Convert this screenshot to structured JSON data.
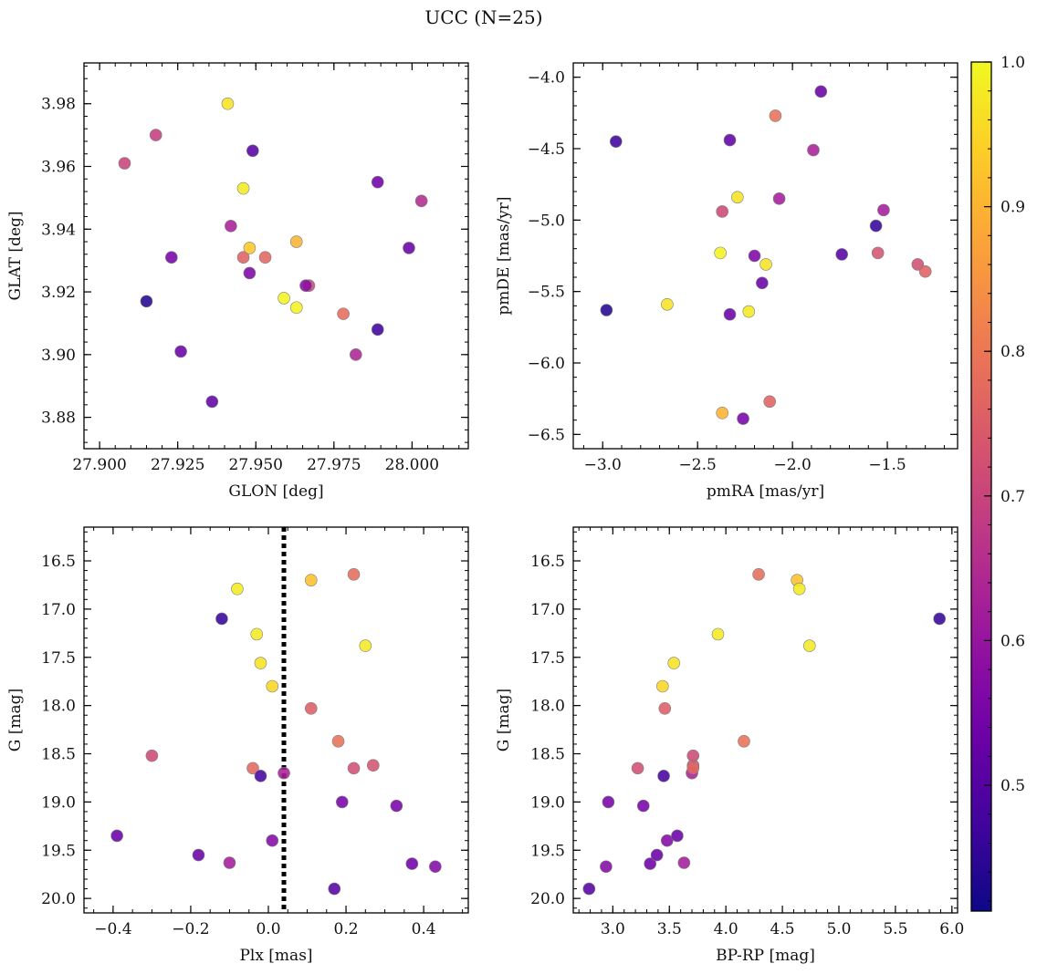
{
  "figure": {
    "title": "UCC (N=25)"
  },
  "colors": {
    "colormap": [
      "#0d0887",
      "#46039f",
      "#7201a8",
      "#9c179e",
      "#bd3786",
      "#d8576b",
      "#ed7953",
      "#fb9f3a",
      "#fdca26",
      "#f0f921"
    ],
    "axis": "#000000",
    "marker_edge": "#7f7f7f",
    "reference_line": "#000000"
  },
  "chart_data": [
    {
      "type": "scatter",
      "id": "glon_glat",
      "xlabel": "GLON [deg]",
      "ylabel": "GLAT [deg]",
      "xlim": [
        27.895,
        28.018
      ],
      "ylim": [
        3.87,
        3.993
      ],
      "xticks": [
        27.9,
        27.925,
        27.95,
        27.975,
        28.0
      ],
      "xtick_labels": [
        "27.900",
        "27.925",
        "27.950",
        "27.975",
        "28.000"
      ],
      "yticks": [
        3.88,
        3.9,
        3.92,
        3.94,
        3.96,
        3.98
      ],
      "ytick_labels": [
        "3.88",
        "3.90",
        "3.92",
        "3.94",
        "3.96",
        "3.98"
      ],
      "x_minor_step": 0.005,
      "y_minor_step": 0.004,
      "y_inverted": false,
      "points": [
        {
          "x": 27.908,
          "y": 3.961,
          "c": 0.7
        },
        {
          "x": 27.918,
          "y": 3.97,
          "c": 0.69
        },
        {
          "x": 27.915,
          "y": 3.917,
          "c": 0.44
        },
        {
          "x": 27.923,
          "y": 3.931,
          "c": 0.55
        },
        {
          "x": 27.926,
          "y": 3.901,
          "c": 0.53
        },
        {
          "x": 27.936,
          "y": 3.885,
          "c": 0.52
        },
        {
          "x": 27.941,
          "y": 3.98,
          "c": 0.97
        },
        {
          "x": 27.942,
          "y": 3.941,
          "c": 0.63
        },
        {
          "x": 27.946,
          "y": 3.953,
          "c": 0.98
        },
        {
          "x": 27.946,
          "y": 3.931,
          "c": 0.76
        },
        {
          "x": 27.948,
          "y": 3.934,
          "c": 0.93
        },
        {
          "x": 27.948,
          "y": 3.926,
          "c": 0.56
        },
        {
          "x": 27.949,
          "y": 3.965,
          "c": 0.5
        },
        {
          "x": 27.953,
          "y": 3.931,
          "c": 0.77
        },
        {
          "x": 27.959,
          "y": 3.918,
          "c": 0.99
        },
        {
          "x": 27.963,
          "y": 3.936,
          "c": 0.9
        },
        {
          "x": 27.963,
          "y": 3.915,
          "c": 0.99
        },
        {
          "x": 27.967,
          "y": 3.922,
          "c": 0.71
        },
        {
          "x": 27.966,
          "y": 3.922,
          "c": 0.58
        },
        {
          "x": 27.978,
          "y": 3.913,
          "c": 0.78
        },
        {
          "x": 27.982,
          "y": 3.9,
          "c": 0.64
        },
        {
          "x": 27.989,
          "y": 3.955,
          "c": 0.54
        },
        {
          "x": 27.989,
          "y": 3.908,
          "c": 0.47
        },
        {
          "x": 27.999,
          "y": 3.934,
          "c": 0.53
        },
        {
          "x": 28.003,
          "y": 3.949,
          "c": 0.65
        }
      ]
    },
    {
      "type": "scatter",
      "id": "pmra_pmde",
      "xlabel": "pmRA [mas/yr]",
      "ylabel": "pmDE [mas/yr]",
      "xlim": [
        -3.155,
        -1.13
      ],
      "ylim": [
        -6.6,
        -3.9
      ],
      "xticks": [
        -3.0,
        -2.5,
        -2.0,
        -1.5
      ],
      "xtick_labels": [
        "−3.0",
        "−2.5",
        "−2.0",
        "−1.5"
      ],
      "yticks": [
        -6.5,
        -6.0,
        -5.5,
        -5.0,
        -4.5,
        -4.0
      ],
      "ytick_labels": [
        "−6.5",
        "−6.0",
        "−5.5",
        "−5.0",
        "−4.5",
        "−4.0"
      ],
      "x_minor_step": 0.1,
      "y_minor_step": 0.1,
      "y_inverted": false,
      "points": [
        {
          "x": -2.93,
          "y": -4.45,
          "c": 0.47
        },
        {
          "x": -2.98,
          "y": -5.63,
          "c": 0.44
        },
        {
          "x": -2.66,
          "y": -5.59,
          "c": 0.97
        },
        {
          "x": -2.38,
          "y": -5.23,
          "c": 0.99
        },
        {
          "x": -2.37,
          "y": -4.94,
          "c": 0.71
        },
        {
          "x": -2.37,
          "y": -6.35,
          "c": 0.9
        },
        {
          "x": -2.33,
          "y": -4.44,
          "c": 0.52
        },
        {
          "x": -2.33,
          "y": -5.66,
          "c": 0.53
        },
        {
          "x": -2.29,
          "y": -4.84,
          "c": 0.97
        },
        {
          "x": -2.26,
          "y": -6.39,
          "c": 0.55
        },
        {
          "x": -2.23,
          "y": -5.64,
          "c": 0.98
        },
        {
          "x": -2.2,
          "y": -5.25,
          "c": 0.56
        },
        {
          "x": -2.16,
          "y": -5.44,
          "c": 0.53
        },
        {
          "x": -2.14,
          "y": -5.31,
          "c": 0.97
        },
        {
          "x": -2.12,
          "y": -6.27,
          "c": 0.76
        },
        {
          "x": -2.09,
          "y": -4.27,
          "c": 0.79
        },
        {
          "x": -2.07,
          "y": -4.85,
          "c": 0.62
        },
        {
          "x": -1.89,
          "y": -4.51,
          "c": 0.63
        },
        {
          "x": -1.85,
          "y": -4.1,
          "c": 0.53
        },
        {
          "x": -1.74,
          "y": -5.24,
          "c": 0.5
        },
        {
          "x": -1.56,
          "y": -5.04,
          "c": 0.46
        },
        {
          "x": -1.55,
          "y": -5.23,
          "c": 0.73
        },
        {
          "x": -1.52,
          "y": -4.93,
          "c": 0.62
        },
        {
          "x": -1.34,
          "y": -5.31,
          "c": 0.72
        },
        {
          "x": -1.3,
          "y": -5.36,
          "c": 0.76
        }
      ]
    },
    {
      "type": "scatter",
      "id": "plx_g",
      "xlabel": "Plx [mas]",
      "ylabel": "G [mag]",
      "xlim": [
        -0.475,
        0.515
      ],
      "ylim": [
        16.15,
        20.15
      ],
      "xticks": [
        -0.4,
        -0.2,
        0.0,
        0.2,
        0.4
      ],
      "xtick_labels": [
        "−0.4",
        "−0.2",
        "0.0",
        "0.2",
        "0.4"
      ],
      "yticks": [
        16.5,
        17.0,
        17.5,
        18.0,
        18.5,
        19.0,
        19.5,
        20.0
      ],
      "ytick_labels": [
        "16.5",
        "17.0",
        "17.5",
        "18.0",
        "18.5",
        "19.0",
        "19.5",
        "20.0"
      ],
      "x_minor_step": 0.05,
      "y_minor_step": 0.1,
      "y_inverted": true,
      "vline": {
        "x": 0.04,
        "style": "dotted"
      },
      "points": [
        {
          "x": -0.39,
          "y": 19.35,
          "c": 0.53
        },
        {
          "x": -0.3,
          "y": 18.52,
          "c": 0.71
        },
        {
          "x": -0.18,
          "y": 19.55,
          "c": 0.53
        },
        {
          "x": -0.12,
          "y": 17.1,
          "c": 0.46
        },
        {
          "x": -0.1,
          "y": 19.63,
          "c": 0.62
        },
        {
          "x": -0.08,
          "y": 16.79,
          "c": 0.98
        },
        {
          "x": -0.04,
          "y": 18.65,
          "c": 0.77
        },
        {
          "x": -0.03,
          "y": 17.26,
          "c": 0.98
        },
        {
          "x": -0.02,
          "y": 17.56,
          "c": 0.97
        },
        {
          "x": -0.02,
          "y": 18.73,
          "c": 0.48
        },
        {
          "x": 0.01,
          "y": 17.8,
          "c": 0.95
        },
        {
          "x": 0.01,
          "y": 19.4,
          "c": 0.57
        },
        {
          "x": 0.04,
          "y": 18.7,
          "c": 0.63
        },
        {
          "x": 0.11,
          "y": 16.7,
          "c": 0.92
        },
        {
          "x": 0.11,
          "y": 18.03,
          "c": 0.75
        },
        {
          "x": 0.17,
          "y": 19.9,
          "c": 0.5
        },
        {
          "x": 0.18,
          "y": 18.37,
          "c": 0.79
        },
        {
          "x": 0.19,
          "y": 19.0,
          "c": 0.55
        },
        {
          "x": 0.22,
          "y": 18.65,
          "c": 0.72
        },
        {
          "x": 0.22,
          "y": 16.64,
          "c": 0.78
        },
        {
          "x": 0.25,
          "y": 17.38,
          "c": 0.98
        },
        {
          "x": 0.27,
          "y": 18.62,
          "c": 0.73
        },
        {
          "x": 0.33,
          "y": 19.04,
          "c": 0.55
        },
        {
          "x": 0.37,
          "y": 19.64,
          "c": 0.54
        },
        {
          "x": 0.43,
          "y": 19.67,
          "c": 0.57
        }
      ]
    },
    {
      "type": "scatter",
      "id": "bprp_g",
      "xlabel": "BP-RP [mag]",
      "ylabel": "G [mag]",
      "xlim": [
        2.65,
        6.05
      ],
      "ylim": [
        16.15,
        20.15
      ],
      "xticks": [
        3.0,
        3.5,
        4.0,
        4.5,
        5.0,
        5.5,
        6.0
      ],
      "xtick_labels": [
        "3.0",
        "3.5",
        "4.0",
        "4.5",
        "5.0",
        "5.5",
        "6.0"
      ],
      "yticks": [
        16.5,
        17.0,
        17.5,
        18.0,
        18.5,
        19.0,
        19.5,
        20.0
      ],
      "ytick_labels": [
        "16.5",
        "17.0",
        "17.5",
        "18.0",
        "18.5",
        "19.0",
        "19.5",
        "20.0"
      ],
      "x_minor_step": 0.1,
      "y_minor_step": 0.1,
      "y_inverted": true,
      "points": [
        {
          "x": 2.79,
          "y": 19.9,
          "c": 0.5
        },
        {
          "x": 2.94,
          "y": 19.67,
          "c": 0.57
        },
        {
          "x": 2.96,
          "y": 19.0,
          "c": 0.55
        },
        {
          "x": 3.22,
          "y": 18.65,
          "c": 0.72
        },
        {
          "x": 3.27,
          "y": 19.04,
          "c": 0.55
        },
        {
          "x": 3.33,
          "y": 19.64,
          "c": 0.54
        },
        {
          "x": 3.39,
          "y": 19.55,
          "c": 0.53
        },
        {
          "x": 3.44,
          "y": 17.8,
          "c": 0.95
        },
        {
          "x": 3.45,
          "y": 18.73,
          "c": 0.48
        },
        {
          "x": 3.46,
          "y": 18.03,
          "c": 0.75
        },
        {
          "x": 3.48,
          "y": 19.4,
          "c": 0.57
        },
        {
          "x": 3.54,
          "y": 17.56,
          "c": 0.97
        },
        {
          "x": 3.57,
          "y": 19.35,
          "c": 0.53
        },
        {
          "x": 3.63,
          "y": 19.63,
          "c": 0.62
        },
        {
          "x": 3.7,
          "y": 18.7,
          "c": 0.63
        },
        {
          "x": 3.71,
          "y": 18.52,
          "c": 0.71
        },
        {
          "x": 3.71,
          "y": 18.62,
          "c": 0.73
        },
        {
          "x": 3.71,
          "y": 18.65,
          "c": 0.77
        },
        {
          "x": 3.93,
          "y": 17.26,
          "c": 0.98
        },
        {
          "x": 4.16,
          "y": 18.37,
          "c": 0.79
        },
        {
          "x": 4.29,
          "y": 16.64,
          "c": 0.78
        },
        {
          "x": 4.63,
          "y": 16.7,
          "c": 0.92
        },
        {
          "x": 4.65,
          "y": 16.79,
          "c": 0.98
        },
        {
          "x": 4.74,
          "y": 17.38,
          "c": 0.98
        },
        {
          "x": 5.89,
          "y": 17.1,
          "c": 0.46
        }
      ]
    }
  ],
  "colorbar": {
    "min": 0.413,
    "max": 1.0,
    "ticks": [
      0.5,
      0.6,
      0.7,
      0.8,
      0.9,
      1.0
    ],
    "tick_labels": [
      "0.5",
      "0.6",
      "0.7",
      "0.8",
      "0.9",
      "1.0"
    ],
    "minor_step": 0.02
  }
}
